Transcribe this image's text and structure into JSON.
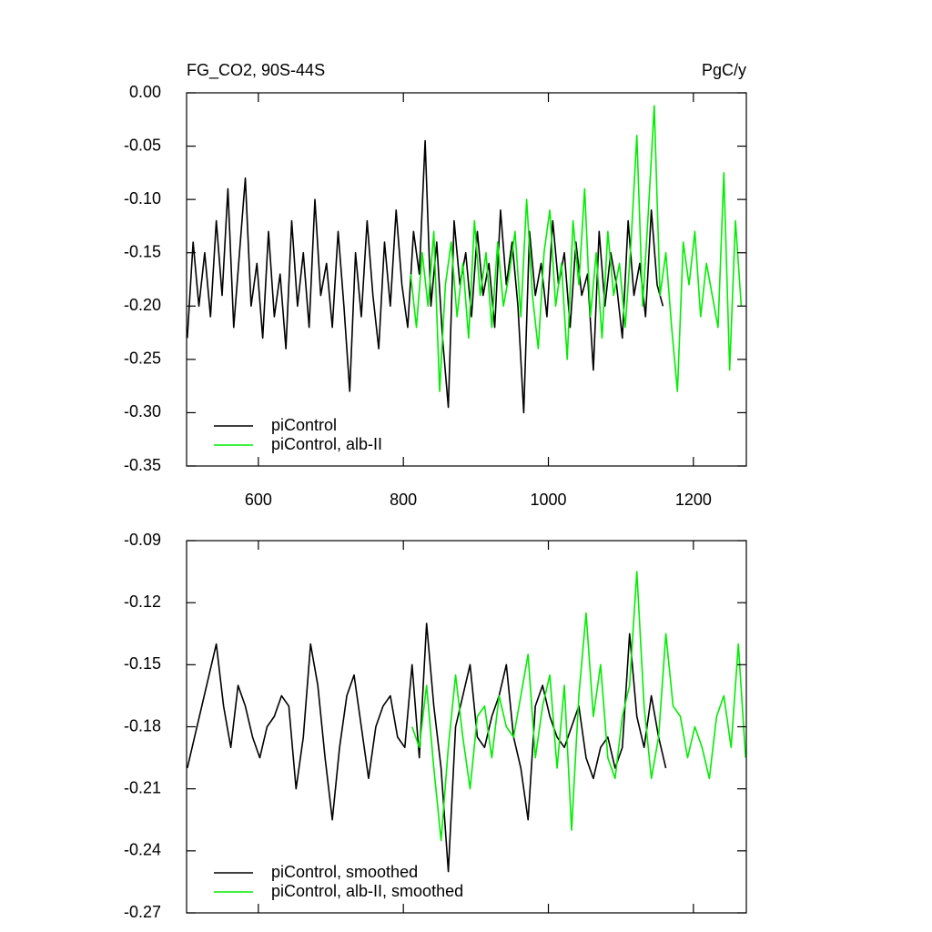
{
  "chart_data": [
    {
      "type": "line",
      "title": "FG_CO2, 90S-44S",
      "unit_label": "PgC/y",
      "xlim": [
        501,
        1273
      ],
      "xticks": [
        600,
        800,
        1000,
        1200
      ],
      "ylim": [
        -0.35,
        0
      ],
      "yticks": [
        {
          "value": 0,
          "label": "0.00"
        },
        -0.05,
        {
          "value": -0.1,
          "label": "-0.10"
        },
        -0.15,
        {
          "value": -0.2,
          "label": "-0.20"
        },
        -0.25,
        {
          "value": -0.3,
          "label": "-0.30"
        },
        -0.35
      ],
      "legend": "lower left",
      "series": [
        {
          "name": "piControl",
          "color": "#000000",
          "x": [
            502,
            510,
            518,
            526,
            534,
            542,
            550,
            558,
            566,
            574,
            582,
            590,
            598,
            606,
            614,
            622,
            630,
            638,
            646,
            654,
            662,
            670,
            678,
            686,
            694,
            702,
            710,
            718,
            726,
            734,
            742,
            750,
            758,
            766,
            774,
            782,
            790,
            798,
            806,
            814,
            822,
            830,
            838,
            846,
            854,
            862,
            870,
            878,
            886,
            894,
            902,
            910,
            918,
            926,
            934,
            942,
            950,
            958,
            966,
            974,
            982,
            990,
            998,
            1006,
            1014,
            1022,
            1030,
            1038,
            1046,
            1054,
            1062,
            1070,
            1078,
            1086,
            1094,
            1102,
            1110,
            1118,
            1126,
            1134,
            1142,
            1150,
            1158
          ],
          "values": [
            -0.23,
            -0.14,
            -0.2,
            -0.15,
            -0.21,
            -0.12,
            -0.19,
            -0.09,
            -0.22,
            -0.15,
            -0.08,
            -0.2,
            -0.16,
            -0.23,
            -0.13,
            -0.21,
            -0.17,
            -0.24,
            -0.12,
            -0.2,
            -0.15,
            -0.22,
            -0.1,
            -0.19,
            -0.16,
            -0.22,
            -0.13,
            -0.2,
            -0.28,
            -0.15,
            -0.21,
            -0.12,
            -0.19,
            -0.24,
            -0.14,
            -0.2,
            -0.11,
            -0.18,
            -0.22,
            -0.13,
            -0.17,
            -0.045,
            -0.2,
            -0.14,
            -0.23,
            -0.295,
            -0.12,
            -0.18,
            -0.15,
            -0.21,
            -0.13,
            -0.19,
            -0.16,
            -0.22,
            -0.11,
            -0.18,
            -0.14,
            -0.2,
            -0.3,
            -0.13,
            -0.19,
            -0.16,
            -0.21,
            -0.12,
            -0.18,
            -0.15,
            -0.22,
            -0.14,
            -0.19,
            -0.17,
            -0.26,
            -0.13,
            -0.2,
            -0.15,
            -0.18,
            -0.23,
            -0.12,
            -0.19,
            -0.16,
            -0.21,
            -0.11,
            -0.18,
            -0.2
          ]
        },
        {
          "name": "piControl, alb-II",
          "color": "#00ee00",
          "x": [
            810,
            818,
            826,
            834,
            842,
            850,
            858,
            866,
            874,
            882,
            890,
            898,
            906,
            914,
            922,
            930,
            938,
            946,
            954,
            962,
            970,
            978,
            986,
            994,
            1002,
            1010,
            1018,
            1026,
            1034,
            1042,
            1050,
            1058,
            1066,
            1074,
            1082,
            1090,
            1098,
            1106,
            1114,
            1122,
            1130,
            1138,
            1146,
            1154,
            1162,
            1170,
            1178,
            1186,
            1194,
            1202,
            1210,
            1218,
            1226,
            1234,
            1242,
            1250,
            1258,
            1266
          ],
          "values": [
            -0.17,
            -0.22,
            -0.15,
            -0.2,
            -0.13,
            -0.28,
            -0.18,
            -0.14,
            -0.21,
            -0.16,
            -0.23,
            -0.12,
            -0.19,
            -0.15,
            -0.22,
            -0.14,
            -0.2,
            -0.17,
            -0.13,
            -0.21,
            -0.1,
            -0.19,
            -0.24,
            -0.15,
            -0.11,
            -0.2,
            -0.16,
            -0.25,
            -0.12,
            -0.18,
            -0.09,
            -0.21,
            -0.15,
            -0.23,
            -0.13,
            -0.19,
            -0.16,
            -0.22,
            -0.14,
            -0.04,
            -0.2,
            -0.11,
            -0.012,
            -0.19,
            -0.15,
            -0.22,
            -0.28,
            -0.14,
            -0.18,
            -0.13,
            -0.21,
            -0.16,
            -0.19,
            -0.22,
            -0.075,
            -0.26,
            -0.12,
            -0.2
          ]
        }
      ]
    },
    {
      "type": "line",
      "xlim": [
        501,
        1273
      ],
      "xticks": [
        600,
        800,
        1000,
        1200
      ],
      "xtick_labels": false,
      "ylim": [
        -0.27,
        -0.09
      ],
      "yticks": [
        -0.09,
        -0.12,
        -0.15,
        -0.18,
        -0.21,
        -0.24,
        -0.27
      ],
      "legend": "lower left",
      "series": [
        {
          "name": "piControl, smoothed",
          "color": "#000000",
          "x": [
            502,
            512,
            522,
            532,
            542,
            552,
            562,
            572,
            582,
            592,
            602,
            612,
            622,
            632,
            642,
            652,
            662,
            672,
            682,
            692,
            702,
            712,
            722,
            732,
            742,
            752,
            762,
            772,
            782,
            792,
            802,
            812,
            822,
            832,
            842,
            852,
            862,
            872,
            882,
            892,
            902,
            912,
            922,
            932,
            942,
            952,
            962,
            972,
            982,
            992,
            1002,
            1012,
            1022,
            1032,
            1042,
            1052,
            1062,
            1072,
            1082,
            1092,
            1102,
            1112,
            1122,
            1132,
            1142,
            1152,
            1162
          ],
          "values": [
            -0.2,
            -0.185,
            -0.17,
            -0.155,
            -0.14,
            -0.17,
            -0.19,
            -0.16,
            -0.17,
            -0.185,
            -0.195,
            -0.18,
            -0.175,
            -0.165,
            -0.17,
            -0.21,
            -0.185,
            -0.14,
            -0.16,
            -0.195,
            -0.225,
            -0.19,
            -0.165,
            -0.155,
            -0.18,
            -0.205,
            -0.18,
            -0.17,
            -0.165,
            -0.185,
            -0.19,
            -0.15,
            -0.195,
            -0.13,
            -0.17,
            -0.2,
            -0.25,
            -0.18,
            -0.165,
            -0.15,
            -0.185,
            -0.19,
            -0.175,
            -0.165,
            -0.15,
            -0.185,
            -0.2,
            -0.225,
            -0.17,
            -0.16,
            -0.175,
            -0.185,
            -0.19,
            -0.18,
            -0.17,
            -0.195,
            -0.205,
            -0.19,
            -0.185,
            -0.2,
            -0.19,
            -0.135,
            -0.175,
            -0.19,
            -0.165,
            -0.185,
            -0.2
          ]
        },
        {
          "name": "piControl, alb-II, smoothed",
          "color": "#00ee00",
          "x": [
            812,
            822,
            832,
            842,
            852,
            862,
            872,
            882,
            892,
            902,
            912,
            922,
            932,
            942,
            952,
            962,
            972,
            982,
            992,
            1002,
            1012,
            1022,
            1032,
            1042,
            1052,
            1062,
            1072,
            1082,
            1092,
            1102,
            1112,
            1122,
            1132,
            1142,
            1152,
            1162,
            1172,
            1182,
            1192,
            1202,
            1212,
            1222,
            1232,
            1242,
            1252,
            1262,
            1272
          ],
          "values": [
            -0.18,
            -0.19,
            -0.16,
            -0.2,
            -0.235,
            -0.19,
            -0.155,
            -0.185,
            -0.21,
            -0.175,
            -0.17,
            -0.195,
            -0.165,
            -0.18,
            -0.185,
            -0.165,
            -0.145,
            -0.195,
            -0.17,
            -0.155,
            -0.2,
            -0.16,
            -0.23,
            -0.165,
            -0.125,
            -0.175,
            -0.15,
            -0.195,
            -0.205,
            -0.175,
            -0.16,
            -0.105,
            -0.17,
            -0.205,
            -0.185,
            -0.135,
            -0.17,
            -0.175,
            -0.195,
            -0.18,
            -0.19,
            -0.205,
            -0.175,
            -0.165,
            -0.19,
            -0.14,
            -0.195
          ]
        }
      ]
    }
  ]
}
